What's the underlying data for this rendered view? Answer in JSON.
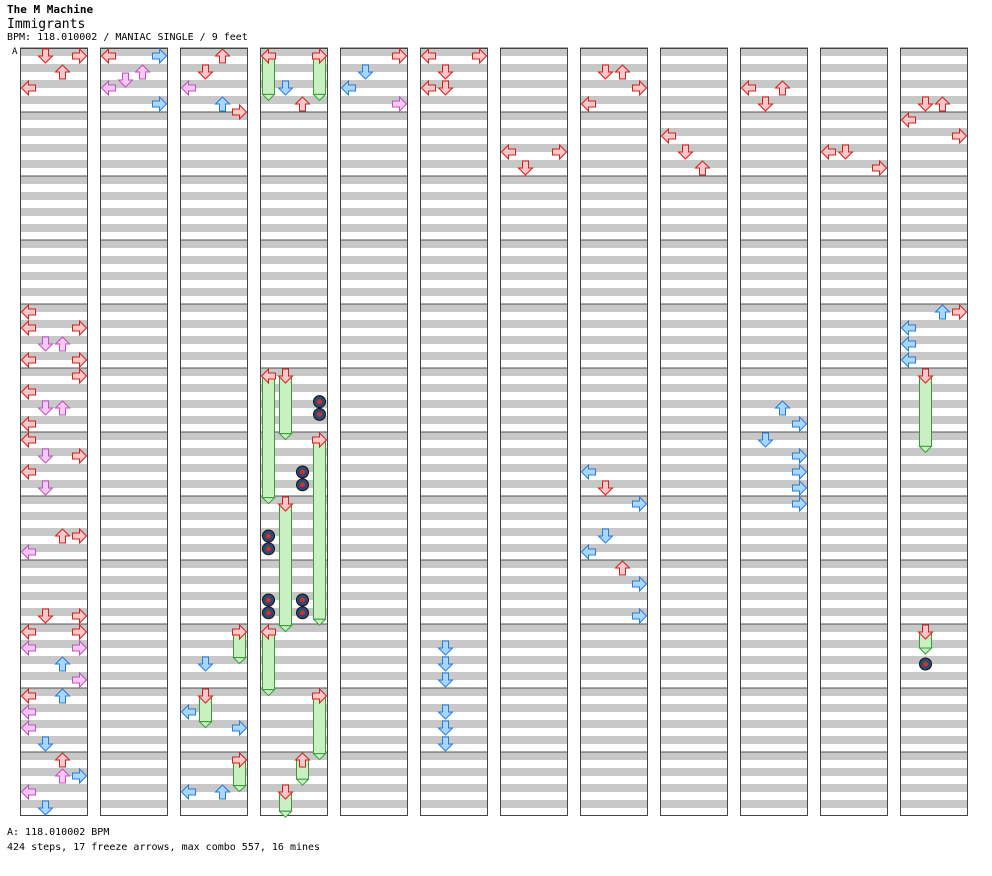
{
  "header": {
    "artist": "The M Machine",
    "title": "Immigrants",
    "meta": "BPM: 118.010002 / MANIAC SINGLE / 9 feet"
  },
  "section_marker": "A",
  "footer": {
    "bpm_line": "A: 118.010002 BPM",
    "stats_line": "424 steps, 17 freeze arrows, max combo 557, 16 mines"
  },
  "colors": {
    "red_fill": "#ffc8c8",
    "red_stroke": "#d02020",
    "pink_fill": "#f8c8f8",
    "pink_stroke": "#c050c0",
    "blue_fill": "#a8d8ff",
    "blue_stroke": "#2a7ad8",
    "freeze_fill": "#c8f0c0",
    "freeze_stroke": "#3a9a3a",
    "stripe": "#c8c8c8"
  },
  "chart_data": {
    "type": "step-chart",
    "columns_count": 12,
    "measures_per_column": 12,
    "lanes": [
      "left",
      "down",
      "up",
      "right"
    ],
    "notes": [
      {
        "c": 0,
        "t": 0.0,
        "lane": 1,
        "k": "red"
      },
      {
        "c": 0,
        "t": 0.0,
        "lane": 3,
        "k": "red"
      },
      {
        "c": 0,
        "t": 0.25,
        "lane": 2,
        "k": "red"
      },
      {
        "c": 0,
        "t": 0.5,
        "lane": 0,
        "k": "red"
      },
      {
        "c": 1,
        "t": 0.0,
        "lane": 0,
        "k": "red"
      },
      {
        "c": 1,
        "t": 0.0,
        "lane": 3,
        "k": "blue"
      },
      {
        "c": 1,
        "t": 0.25,
        "lane": 2,
        "k": "pink"
      },
      {
        "c": 1,
        "t": 0.375,
        "lane": 1,
        "k": "pink"
      },
      {
        "c": 1,
        "t": 0.5,
        "lane": 0,
        "k": "pink"
      },
      {
        "c": 1,
        "t": 0.75,
        "lane": 3,
        "k": "blue"
      },
      {
        "c": 2,
        "t": 0.0,
        "lane": 2,
        "k": "red"
      },
      {
        "c": 2,
        "t": 0.25,
        "lane": 1,
        "k": "red"
      },
      {
        "c": 2,
        "t": 0.5,
        "lane": 0,
        "k": "pink"
      },
      {
        "c": 2,
        "t": 0.75,
        "lane": 2,
        "k": "blue"
      },
      {
        "c": 2,
        "t": 0.875,
        "lane": 3,
        "k": "red"
      },
      {
        "c": 3,
        "t": 0.0,
        "lane": 0,
        "k": "freeze",
        "len": 0.6
      },
      {
        "c": 3,
        "t": 0.0,
        "lane": 3,
        "k": "freeze",
        "len": 0.6
      },
      {
        "c": 3,
        "t": 0.5,
        "lane": 1,
        "k": "blue"
      },
      {
        "c": 3,
        "t": 0.75,
        "lane": 2,
        "k": "red"
      },
      {
        "c": 4,
        "t": 0.0,
        "lane": 3,
        "k": "red"
      },
      {
        "c": 4,
        "t": 0.25,
        "lane": 1,
        "k": "blue"
      },
      {
        "c": 4,
        "t": 0.5,
        "lane": 0,
        "k": "blue"
      },
      {
        "c": 4,
        "t": 0.75,
        "lane": 3,
        "k": "pink"
      },
      {
        "c": 5,
        "t": 0.0,
        "lane": 0,
        "k": "red"
      },
      {
        "c": 5,
        "t": 0.0,
        "lane": 3,
        "k": "red"
      },
      {
        "c": 5,
        "t": 0.25,
        "lane": 1,
        "k": "red"
      },
      {
        "c": 5,
        "t": 0.5,
        "lane": 0,
        "k": "red"
      },
      {
        "c": 5,
        "t": 0.5,
        "lane": 1,
        "k": "red"
      },
      {
        "c": 6,
        "t": 1.5,
        "lane": 0,
        "k": "red"
      },
      {
        "c": 6,
        "t": 1.5,
        "lane": 3,
        "k": "red"
      },
      {
        "c": 6,
        "t": 1.75,
        "lane": 1,
        "k": "red"
      },
      {
        "c": 7,
        "t": 0.25,
        "lane": 1,
        "k": "red"
      },
      {
        "c": 7,
        "t": 0.25,
        "lane": 2,
        "k": "red"
      },
      {
        "c": 7,
        "t": 0.5,
        "lane": 3,
        "k": "red"
      },
      {
        "c": 7,
        "t": 0.75,
        "lane": 0,
        "k": "red"
      },
      {
        "c": 8,
        "t": 1.25,
        "lane": 0,
        "k": "red"
      },
      {
        "c": 8,
        "t": 1.5,
        "lane": 1,
        "k": "red"
      },
      {
        "c": 8,
        "t": 1.75,
        "lane": 2,
        "k": "red"
      },
      {
        "c": 9,
        "t": 0.5,
        "lane": 0,
        "k": "red"
      },
      {
        "c": 9,
        "t": 0.5,
        "lane": 2,
        "k": "red"
      },
      {
        "c": 9,
        "t": 0.75,
        "lane": 1,
        "k": "red"
      },
      {
        "c": 10,
        "t": 1.5,
        "lane": 0,
        "k": "red"
      },
      {
        "c": 10,
        "t": 1.5,
        "lane": 1,
        "k": "red"
      },
      {
        "c": 10,
        "t": 1.75,
        "lane": 3,
        "k": "red"
      },
      {
        "c": 11,
        "t": 0.75,
        "lane": 1,
        "k": "red"
      },
      {
        "c": 11,
        "t": 0.75,
        "lane": 2,
        "k": "red"
      },
      {
        "c": 11,
        "t": 1.0,
        "lane": 0,
        "k": "red"
      },
      {
        "c": 11,
        "t": 1.25,
        "lane": 3,
        "k": "red"
      },
      {
        "c": 0,
        "t": 4.0,
        "lane": 0,
        "k": "red"
      },
      {
        "c": 0,
        "t": 4.25,
        "lane": 0,
        "k": "red"
      },
      {
        "c": 0,
        "t": 4.25,
        "lane": 3,
        "k": "red"
      },
      {
        "c": 0,
        "t": 4.5,
        "lane": 1,
        "k": "pink"
      },
      {
        "c": 0,
        "t": 4.5,
        "lane": 2,
        "k": "pink"
      },
      {
        "c": 0,
        "t": 4.75,
        "lane": 0,
        "k": "red"
      },
      {
        "c": 0,
        "t": 4.75,
        "lane": 3,
        "k": "red"
      },
      {
        "c": 0,
        "t": 5.0,
        "lane": 3,
        "k": "red"
      },
      {
        "c": 0,
        "t": 5.25,
        "lane": 0,
        "k": "red"
      },
      {
        "c": 0,
        "t": 5.5,
        "lane": 1,
        "k": "pink"
      },
      {
        "c": 0,
        "t": 5.5,
        "lane": 2,
        "k": "pink"
      },
      {
        "c": 0,
        "t": 5.75,
        "lane": 0,
        "k": "red"
      },
      {
        "c": 0,
        "t": 6.0,
        "lane": 0,
        "k": "red"
      },
      {
        "c": 0,
        "t": 6.25,
        "lane": 1,
        "k": "pink"
      },
      {
        "c": 0,
        "t": 6.25,
        "lane": 3,
        "k": "red"
      },
      {
        "c": 0,
        "t": 6.5,
        "lane": 0,
        "k": "red"
      },
      {
        "c": 0,
        "t": 6.75,
        "lane": 1,
        "k": "pink"
      },
      {
        "c": 0,
        "t": 7.5,
        "lane": 2,
        "k": "red"
      },
      {
        "c": 0,
        "t": 7.5,
        "lane": 3,
        "k": "red"
      },
      {
        "c": 0,
        "t": 7.75,
        "lane": 0,
        "k": "pink"
      },
      {
        "c": 0,
        "t": 8.75,
        "lane": 1,
        "k": "red"
      },
      {
        "c": 0,
        "t": 8.75,
        "lane": 3,
        "k": "red"
      },
      {
        "c": 0,
        "t": 9.0,
        "lane": 0,
        "k": "red"
      },
      {
        "c": 0,
        "t": 9.0,
        "lane": 3,
        "k": "red"
      },
      {
        "c": 0,
        "t": 9.25,
        "lane": 0,
        "k": "pink"
      },
      {
        "c": 0,
        "t": 9.25,
        "lane": 3,
        "k": "pink"
      },
      {
        "c": 0,
        "t": 9.5,
        "lane": 2,
        "k": "blue"
      },
      {
        "c": 0,
        "t": 9.75,
        "lane": 3,
        "k": "pink"
      },
      {
        "c": 0,
        "t": 10.0,
        "lane": 0,
        "k": "red"
      },
      {
        "c": 0,
        "t": 10.0,
        "lane": 2,
        "k": "blue"
      },
      {
        "c": 0,
        "t": 10.25,
        "lane": 0,
        "k": "pink"
      },
      {
        "c": 0,
        "t": 10.5,
        "lane": 0,
        "k": "pink"
      },
      {
        "c": 0,
        "t": 10.75,
        "lane": 1,
        "k": "blue"
      },
      {
        "c": 0,
        "t": 11.0,
        "lane": 2,
        "k": "red"
      },
      {
        "c": 0,
        "t": 11.25,
        "lane": 2,
        "k": "pink"
      },
      {
        "c": 0,
        "t": 11.25,
        "lane": 3,
        "k": "blue"
      },
      {
        "c": 0,
        "t": 11.5,
        "lane": 0,
        "k": "pink"
      },
      {
        "c": 0,
        "t": 11.75,
        "lane": 1,
        "k": "blue"
      },
      {
        "c": 3,
        "t": 5.0,
        "lane": 0,
        "k": "freeze",
        "len": 1.9
      },
      {
        "c": 3,
        "t": 5.0,
        "lane": 1,
        "k": "freeze",
        "len": 0.9
      },
      {
        "c": 3,
        "t": 5.4,
        "lane": 3,
        "k": "mine"
      },
      {
        "c": 3,
        "t": 5.6,
        "lane": 3,
        "k": "mine"
      },
      {
        "c": 3,
        "t": 6.0,
        "lane": 3,
        "k": "freeze",
        "len": 2.8
      },
      {
        "c": 3,
        "t": 6.5,
        "lane": 2,
        "k": "mine"
      },
      {
        "c": 3,
        "t": 6.7,
        "lane": 2,
        "k": "mine"
      },
      {
        "c": 3,
        "t": 7.0,
        "lane": 1,
        "k": "freeze",
        "len": 1.9
      },
      {
        "c": 3,
        "t": 7.5,
        "lane": 0,
        "k": "mine"
      },
      {
        "c": 3,
        "t": 7.7,
        "lane": 0,
        "k": "mine"
      },
      {
        "c": 3,
        "t": 8.5,
        "lane": 0,
        "k": "mine"
      },
      {
        "c": 3,
        "t": 8.7,
        "lane": 0,
        "k": "mine"
      },
      {
        "c": 3,
        "t": 8.5,
        "lane": 2,
        "k": "mine"
      },
      {
        "c": 3,
        "t": 8.7,
        "lane": 2,
        "k": "mine"
      },
      {
        "c": 3,
        "t": 9.0,
        "lane": 0,
        "k": "freeze",
        "len": 0.9
      },
      {
        "c": 3,
        "t": 10.0,
        "lane": 3,
        "k": "freeze",
        "len": 0.9
      },
      {
        "c": 3,
        "t": 11.0,
        "lane": 2,
        "k": "freeze",
        "len": 0.3
      },
      {
        "c": 3,
        "t": 11.5,
        "lane": 1,
        "k": "freeze",
        "len": 0.3
      },
      {
        "c": 11,
        "t": 5.0,
        "lane": 1,
        "k": "freeze",
        "len": 1.1
      },
      {
        "c": 11,
        "t": 9.0,
        "lane": 1,
        "k": "freeze",
        "len": 0.25
      },
      {
        "c": 11,
        "t": 9.5,
        "lane": 1,
        "k": "mine"
      },
      {
        "c": 11,
        "t": 4.25,
        "lane": 0,
        "k": "blue"
      },
      {
        "c": 11,
        "t": 4.5,
        "lane": 0,
        "k": "blue"
      },
      {
        "c": 11,
        "t": 4.75,
        "lane": 0,
        "k": "blue"
      },
      {
        "c": 11,
        "t": 4.0,
        "lane": 2,
        "k": "blue"
      },
      {
        "c": 11,
        "t": 4.0,
        "lane": 3,
        "k": "red"
      },
      {
        "c": 7,
        "t": 6.5,
        "lane": 0,
        "k": "blue"
      },
      {
        "c": 7,
        "t": 6.75,
        "lane": 1,
        "k": "red"
      },
      {
        "c": 7,
        "t": 7.0,
        "lane": 3,
        "k": "blue"
      },
      {
        "c": 7,
        "t": 7.5,
        "lane": 1,
        "k": "blue"
      },
      {
        "c": 7,
        "t": 7.75,
        "lane": 0,
        "k": "blue"
      },
      {
        "c": 7,
        "t": 8.0,
        "lane": 2,
        "k": "red"
      },
      {
        "c": 7,
        "t": 8.25,
        "lane": 3,
        "k": "blue"
      },
      {
        "c": 7,
        "t": 8.75,
        "lane": 3,
        "k": "blue"
      },
      {
        "c": 9,
        "t": 5.5,
        "lane": 2,
        "k": "blue"
      },
      {
        "c": 9,
        "t": 5.75,
        "lane": 3,
        "k": "blue"
      },
      {
        "c": 9,
        "t": 6.0,
        "lane": 1,
        "k": "blue"
      },
      {
        "c": 9,
        "t": 6.25,
        "lane": 3,
        "k": "blue"
      },
      {
        "c": 9,
        "t": 6.5,
        "lane": 3,
        "k": "blue"
      },
      {
        "c": 9,
        "t": 6.75,
        "lane": 3,
        "k": "blue"
      },
      {
        "c": 9,
        "t": 7.0,
        "lane": 3,
        "k": "blue"
      },
      {
        "c": 5,
        "t": 9.25,
        "lane": 1,
        "k": "blue"
      },
      {
        "c": 5,
        "t": 9.5,
        "lane": 1,
        "k": "blue"
      },
      {
        "c": 5,
        "t": 9.75,
        "lane": 1,
        "k": "blue"
      },
      {
        "c": 5,
        "t": 10.25,
        "lane": 1,
        "k": "blue"
      },
      {
        "c": 5,
        "t": 10.5,
        "lane": 1,
        "k": "blue"
      },
      {
        "c": 5,
        "t": 10.75,
        "lane": 1,
        "k": "blue"
      },
      {
        "c": 2,
        "t": 9.5,
        "lane": 1,
        "k": "blue"
      },
      {
        "c": 2,
        "t": 10.25,
        "lane": 0,
        "k": "blue"
      },
      {
        "c": 2,
        "t": 10.5,
        "lane": 3,
        "k": "blue"
      },
      {
        "c": 2,
        "t": 11.0,
        "lane": 3,
        "k": "blue"
      },
      {
        "c": 2,
        "t": 11.5,
        "lane": 0,
        "k": "blue"
      },
      {
        "c": 2,
        "t": 11.5,
        "lane": 2,
        "k": "blue"
      },
      {
        "c": 2,
        "t": 10.0,
        "lane": 1,
        "k": "freeze",
        "len": 0.4
      },
      {
        "c": 2,
        "t": 9.0,
        "lane": 3,
        "k": "freeze",
        "len": 0.4
      },
      {
        "c": 2,
        "t": 11.0,
        "lane": 3,
        "k": "freeze",
        "len": 0.4
      }
    ]
  }
}
